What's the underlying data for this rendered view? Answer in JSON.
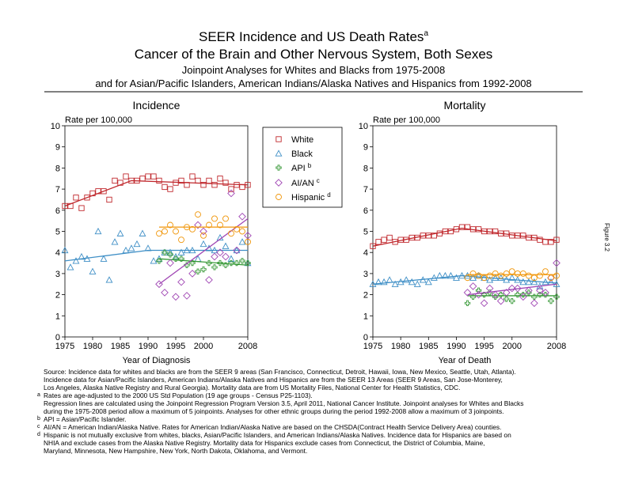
{
  "title": "SEER Incidence and US Death Rates",
  "title_note": "a",
  "subtitle": "Cancer of the Brain and Other Nervous System, Both Sexes",
  "subtitle2": "Joinpoint Analyses for Whites and Blacks from 1975-2008",
  "subtitle3": "and for Asian/Pacific Islanders, American Indians/Alaska Natives and Hispanics from 1992-2008",
  "figure_label": "Figure 3.2",
  "notes": [
    {
      "lines": [
        "Source:  Incidence data for whites and blacks are from the SEER 9 areas (San Francisco, Connecticut, Detroit, Hawaii, Iowa, New Mexico, Seattle, Utah, Atlanta).",
        "Incidence data for Asian/Pacific Islanders, American Indians/Alaska Natives and Hispanics are from the SEER 13 Areas (SEER 9 Areas, San Jose-Monterey,",
        "Los Angeles, Alaska Native Registry and Rural Georgia).  Mortality data are from US Mortality Files, National Center for Health Statistics, CDC."
      ]
    },
    {
      "mark": "a",
      "lines": [
        "Rates are age-adjusted to the 2000 US Std Population (19 age groups - Census P25-1103).",
        "Regression lines are calculated using the Joinpoint Regression Program Version 3.5, April 2011, National Cancer Institute.  Joinpoint analyses for Whites and Blacks",
        "during the 1975-2008 period allow a maximum of 5 joinpoints.  Analyses for other ethnic groups during the period 1992-2008 allow a maximum of 3 joinpoints."
      ]
    },
    {
      "mark": "b",
      "lines": [
        "API = Asian/Pacific Islander."
      ]
    },
    {
      "mark": "c",
      "lines": [
        "AI/AN = American Indian/Alaska Native.  Rates for American Indian/Alaska Native are based on the CHSDA(Contract Health Service Delivery Area) counties."
      ]
    },
    {
      "mark": "d",
      "lines": [
        "Hispanic is not mutually exclusive from whites, blacks, Asian/Pacific Islanders, and American Indians/Alaska Natives.  Incidence data for Hispanics are based on",
        "NHIA and exclude cases from the Alaska Native Registry.  Mortality data for Hispanics exclude cases from Connecticut, the District of Columbia, Maine,",
        "Maryland, Minnesota, New Hampshire, New York, North Dakota, Oklahoma, and Vermont."
      ]
    }
  ],
  "chart_data": [
    {
      "type": "scatter",
      "title": "Incidence",
      "y_label": "Rate per 100,000",
      "x_label": "Year of Diagnosis",
      "xlim": [
        1975,
        2008
      ],
      "ylim": [
        0,
        10
      ],
      "xticks": [
        1975,
        1980,
        1985,
        1990,
        1995,
        2000,
        2008
      ],
      "yticks": [
        0,
        1,
        2,
        3,
        4,
        5,
        6,
        7,
        8,
        9,
        10
      ],
      "x": [
        1975,
        1976,
        1977,
        1978,
        1979,
        1980,
        1981,
        1982,
        1983,
        1984,
        1985,
        1986,
        1987,
        1988,
        1989,
        1990,
        1991,
        1992,
        1993,
        1994,
        1995,
        1996,
        1997,
        1998,
        1999,
        2000,
        2001,
        2002,
        2003,
        2004,
        2005,
        2006,
        2007,
        2008
      ],
      "series": [
        {
          "name": "White",
          "color": "#c0282d",
          "marker": "square",
          "values": [
            6.2,
            6.2,
            6.6,
            6.1,
            6.6,
            6.8,
            6.9,
            6.9,
            6.5,
            7.4,
            7.3,
            7.6,
            7.4,
            7.4,
            7.5,
            7.6,
            7.6,
            7.4,
            7.1,
            7.0,
            7.3,
            7.4,
            7.2,
            7.6,
            7.4,
            7.2,
            7.4,
            7.2,
            7.5,
            7.3,
            7.0,
            7.2,
            7.1,
            7.2
          ],
          "trend_x": [
            1975,
            1987,
            2008
          ],
          "trend_y": [
            6.2,
            7.4,
            7.2
          ]
        },
        {
          "name": "Black",
          "color": "#3f8fc6",
          "marker": "triangle",
          "values": [
            4.1,
            3.3,
            3.6,
            3.8,
            3.7,
            3.1,
            5.0,
            3.7,
            2.7,
            4.5,
            4.9,
            4.1,
            4.2,
            4.4,
            4.9,
            4.2,
            3.6,
            3.7,
            4.0,
            4.0,
            3.8,
            4.0,
            4.1,
            4.1,
            3.7,
            4.4,
            4.2,
            4.1,
            4.7,
            4.3,
            3.7,
            4.1,
            4.5,
            3.5
          ],
          "trend_x": [
            1975,
            1990,
            2008
          ],
          "trend_y": [
            3.6,
            4.1,
            4.1
          ]
        },
        {
          "name": "API",
          "name_note": "b",
          "color": "#3a9a3a",
          "marker": "plus",
          "values": [
            null,
            null,
            null,
            null,
            null,
            null,
            null,
            null,
            null,
            null,
            null,
            null,
            null,
            null,
            null,
            null,
            null,
            3.6,
            4.0,
            3.9,
            3.7,
            3.7,
            3.4,
            3.5,
            3.1,
            3.2,
            3.5,
            3.3,
            3.5,
            3.4,
            3.5,
            3.5,
            3.6,
            3.5
          ],
          "trend_x": [
            1992,
            2008
          ],
          "trend_y": [
            3.7,
            3.4
          ]
        },
        {
          "name": "AI/AN",
          "name_note": "c",
          "color": "#a046b4",
          "marker": "diamond",
          "values": [
            null,
            null,
            null,
            null,
            null,
            null,
            null,
            null,
            null,
            null,
            null,
            null,
            null,
            null,
            null,
            null,
            null,
            2.5,
            2.1,
            3.5,
            1.9,
            2.6,
            1.95,
            3.0,
            5.3,
            5.0,
            2.7,
            3.8,
            4.0,
            3.8,
            6.8,
            4.1,
            5.7,
            4.8
          ],
          "trend_x": [
            1992,
            2008
          ],
          "trend_y": [
            2.5,
            5.6
          ]
        },
        {
          "name": "Hispanic",
          "name_note": "d",
          "color": "#f0960a",
          "marker": "circle",
          "values": [
            null,
            null,
            null,
            null,
            null,
            null,
            null,
            null,
            null,
            null,
            null,
            null,
            null,
            null,
            null,
            null,
            null,
            4.9,
            5.0,
            5.3,
            5.0,
            4.6,
            5.2,
            5.1,
            5.8,
            4.8,
            5.3,
            5.6,
            5.3,
            5.6,
            4.9,
            5.1,
            5.0,
            4.5
          ],
          "trend_x": [
            1992,
            2008
          ],
          "trend_y": [
            5.2,
            5.2
          ]
        }
      ]
    },
    {
      "type": "scatter",
      "title": "Mortality",
      "y_label": "Rate per 100,000",
      "x_label": "Year of Death",
      "xlim": [
        1975,
        2008
      ],
      "ylim": [
        0,
        10
      ],
      "xticks": [
        1975,
        1980,
        1985,
        1990,
        1995,
        2000,
        2008
      ],
      "yticks": [
        0,
        1,
        2,
        3,
        4,
        5,
        6,
        7,
        8,
        9,
        10
      ],
      "x": [
        1975,
        1976,
        1977,
        1978,
        1979,
        1980,
        1981,
        1982,
        1983,
        1984,
        1985,
        1986,
        1987,
        1988,
        1989,
        1990,
        1991,
        1992,
        1993,
        1994,
        1995,
        1996,
        1997,
        1998,
        1999,
        2000,
        2001,
        2002,
        2003,
        2004,
        2005,
        2006,
        2007,
        2008
      ],
      "series": [
        {
          "color": "#c0282d",
          "marker": "square",
          "values": [
            4.3,
            4.5,
            4.6,
            4.7,
            4.5,
            4.6,
            4.6,
            4.7,
            4.7,
            4.8,
            4.8,
            4.8,
            4.9,
            5.0,
            5.0,
            5.1,
            5.2,
            5.2,
            5.1,
            5.1,
            5.0,
            5.0,
            5.0,
            4.9,
            4.9,
            4.8,
            4.8,
            4.8,
            4.7,
            4.7,
            4.6,
            4.5,
            4.5,
            4.6
          ],
          "trend_x": [
            1975,
            1991,
            2008
          ],
          "trend_y": [
            4.3,
            5.15,
            4.55
          ]
        },
        {
          "color": "#3f8fc6",
          "marker": "triangle",
          "values": [
            2.5,
            2.6,
            2.6,
            2.7,
            2.5,
            2.6,
            2.7,
            2.6,
            2.5,
            2.7,
            2.6,
            2.8,
            2.9,
            2.9,
            2.9,
            2.8,
            2.9,
            2.9,
            2.8,
            2.9,
            2.8,
            2.7,
            2.8,
            2.8,
            2.7,
            2.8,
            2.7,
            2.6,
            2.6,
            2.6,
            2.4,
            2.6,
            2.6,
            2.5
          ],
          "trend_x": [
            1975,
            1991,
            2008
          ],
          "trend_y": [
            2.5,
            2.9,
            2.55
          ]
        },
        {
          "color": "#3a9a3a",
          "marker": "plus",
          "values": [
            null,
            null,
            null,
            null,
            null,
            null,
            null,
            null,
            null,
            null,
            null,
            null,
            null,
            null,
            null,
            null,
            null,
            1.6,
            1.9,
            2.2,
            2.0,
            2.1,
            1.9,
            2.0,
            1.8,
            1.7,
            2.0,
            2.0,
            2.1,
            1.9,
            2.0,
            2.0,
            1.7,
            1.9
          ],
          "trend_x": [
            1992,
            2008
          ],
          "trend_y": [
            1.95,
            1.95
          ]
        },
        {
          "color": "#a046b4",
          "marker": "diamond",
          "values": [
            null,
            null,
            null,
            null,
            null,
            null,
            null,
            null,
            null,
            null,
            null,
            null,
            null,
            null,
            null,
            null,
            null,
            2.1,
            2.4,
            2.0,
            1.6,
            2.3,
            2.0,
            1.7,
            2.1,
            2.3,
            2.3,
            1.9,
            2.2,
            1.6,
            2.2,
            2.1,
            2.8,
            3.5
          ],
          "trend_x": [
            1992,
            2008
          ],
          "trend_y": [
            2.0,
            2.5
          ]
        },
        {
          "color": "#f0960a",
          "marker": "circle",
          "values": [
            null,
            null,
            null,
            null,
            null,
            null,
            null,
            null,
            null,
            null,
            null,
            null,
            null,
            null,
            null,
            null,
            null,
            2.8,
            3.0,
            2.9,
            2.8,
            2.9,
            3.0,
            2.9,
            3.0,
            3.1,
            3.0,
            3.0,
            2.9,
            2.8,
            2.9,
            3.1,
            2.8,
            2.9
          ],
          "trend_x": [
            1992,
            2008
          ],
          "trend_y": [
            2.95,
            2.95
          ]
        }
      ]
    }
  ]
}
